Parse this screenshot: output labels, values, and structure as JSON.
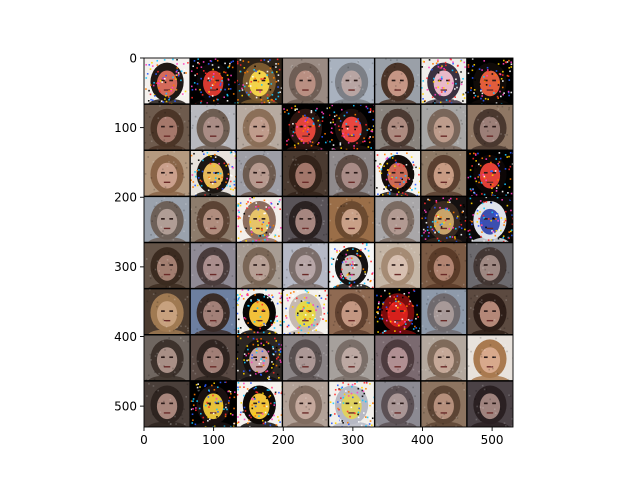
{
  "chart_data": {
    "type": "heatmap",
    "description_kind": "image grid",
    "grid": {
      "rows": 8,
      "cols": 8
    },
    "image_extent": [
      0,
      530,
      0,
      530
    ],
    "xlim": [
      0,
      530
    ],
    "ylim": [
      530,
      0
    ],
    "x_ticks": [
      0,
      100,
      200,
      300,
      400,
      500
    ],
    "y_ticks": [
      0,
      100,
      200,
      300,
      400,
      500
    ],
    "x_tick_labels": [
      "0",
      "100",
      "200",
      "300",
      "400",
      "500"
    ],
    "y_tick_labels": [
      "0",
      "100",
      "200",
      "300",
      "400",
      "500"
    ],
    "separator_color": "#000000",
    "tiles": [
      {
        "row": 0,
        "col": 0,
        "bg": "#f4f1ee",
        "hair": "#1d1714",
        "face": "#d46a5a",
        "noisy": true
      },
      {
        "row": 0,
        "col": 1,
        "bg": "#000000",
        "hair": "#0a0707",
        "face": "#d83a30",
        "noisy": true
      },
      {
        "row": 0,
        "col": 2,
        "bg": "#2b2218",
        "hair": "#7a5a30",
        "face": "#f3d24a",
        "noisy": true
      },
      {
        "row": 0,
        "col": 3,
        "bg": "#9a8b83",
        "hair": "#6f5e55",
        "face": "#b98f82",
        "noisy": false
      },
      {
        "row": 0,
        "col": 4,
        "bg": "#a9b2bf",
        "hair": "#7c7f86",
        "face": "#b8a5a3",
        "noisy": false
      },
      {
        "row": 0,
        "col": 5,
        "bg": "#9aa0a8",
        "hair": "#4a3428",
        "face": "#c69685",
        "noisy": false
      },
      {
        "row": 0,
        "col": 6,
        "bg": "#f0eeea",
        "hair": "#3a3040",
        "face": "#e9b9c9",
        "noisy": true
      },
      {
        "row": 0,
        "col": 7,
        "bg": "#000000",
        "hair": "#100b08",
        "face": "#e25d3c",
        "noisy": true
      },
      {
        "row": 1,
        "col": 0,
        "bg": "#6e5b4d",
        "hair": "#4b3527",
        "face": "#a5786b",
        "noisy": false
      },
      {
        "row": 1,
        "col": 1,
        "bg": "#b8b9bf",
        "hair": "#6d5d52",
        "face": "#a98c85",
        "noisy": false
      },
      {
        "row": 1,
        "col": 2,
        "bg": "#b7aaa0",
        "hair": "#8b6f58",
        "face": "#c09c8c",
        "noisy": false
      },
      {
        "row": 1,
        "col": 3,
        "bg": "#000000",
        "hair": "#2a1510",
        "face": "#e2453a",
        "noisy": true
      },
      {
        "row": 1,
        "col": 4,
        "bg": "#000000",
        "hair": "#1a0f0c",
        "face": "#e9463f",
        "noisy": true
      },
      {
        "row": 1,
        "col": 5,
        "bg": "#8a847e",
        "hair": "#4b3a32",
        "face": "#ad8b80",
        "noisy": false
      },
      {
        "row": 1,
        "col": 6,
        "bg": "#a7a6a5",
        "hair": "#79665a",
        "face": "#bd9c8c",
        "noisy": false
      },
      {
        "row": 1,
        "col": 7,
        "bg": "#8f7764",
        "hair": "#4a382f",
        "face": "#9c7f78",
        "noisy": false
      },
      {
        "row": 2,
        "col": 0,
        "bg": "#b49a80",
        "hair": "#8a6548",
        "face": "#caa08c",
        "noisy": false
      },
      {
        "row": 2,
        "col": 1,
        "bg": "#e8e2dc",
        "hair": "#1b1612",
        "face": "#e7b95a",
        "noisy": true
      },
      {
        "row": 2,
        "col": 2,
        "bg": "#9e9ea6",
        "hair": "#6d5b50",
        "face": "#b79a8f",
        "noisy": false
      },
      {
        "row": 2,
        "col": 3,
        "bg": "#4a3a30",
        "hair": "#33231a",
        "face": "#a2766a",
        "noisy": false
      },
      {
        "row": 2,
        "col": 4,
        "bg": "#8f8a8c",
        "hair": "#5d4c45",
        "face": "#a88b86",
        "noisy": false
      },
      {
        "row": 2,
        "col": 5,
        "bg": "#f5f3f0",
        "hair": "#120c0a",
        "face": "#cc6a56",
        "noisy": true
      },
      {
        "row": 2,
        "col": 6,
        "bg": "#8e7a66",
        "hair": "#5b4030",
        "face": "#c79b83",
        "noisy": false
      },
      {
        "row": 2,
        "col": 7,
        "bg": "#000000",
        "hair": "#0c0606",
        "face": "#e24036",
        "noisy": true
      },
      {
        "row": 3,
        "col": 0,
        "bg": "#9aa2ad",
        "hair": "#6d6058",
        "face": "#b09d95",
        "noisy": false
      },
      {
        "row": 3,
        "col": 1,
        "bg": "#8d7c6c",
        "hair": "#5b4334",
        "face": "#b08d7e",
        "noisy": false
      },
      {
        "row": 3,
        "col": 2,
        "bg": "#f3eeea",
        "hair": "#8c6d5e",
        "face": "#e7c46a",
        "noisy": true
      },
      {
        "row": 3,
        "col": 3,
        "bg": "#595358",
        "hair": "#2b2222",
        "face": "#a68680",
        "noisy": false
      },
      {
        "row": 3,
        "col": 4,
        "bg": "#9a6e48",
        "hair": "#6b4a30",
        "face": "#c9a087",
        "noisy": false
      },
      {
        "row": 3,
        "col": 5,
        "bg": "#a9a7a9",
        "hair": "#7b6b62",
        "face": "#b29a92",
        "noisy": false
      },
      {
        "row": 3,
        "col": 6,
        "bg": "#141010",
        "hair": "#3a2a20",
        "face": "#c9a46a",
        "noisy": true
      },
      {
        "row": 3,
        "col": 7,
        "bg": "#0a0808",
        "hair": "#dfe3ea",
        "face": "#3b4fb0",
        "noisy": true
      },
      {
        "row": 4,
        "col": 0,
        "bg": "#645448",
        "hair": "#3b2b20",
        "face": "#a27e70",
        "noisy": false
      },
      {
        "row": 4,
        "col": 1,
        "bg": "#8f8a95",
        "hair": "#4a3c3c",
        "face": "#a98d8c",
        "noisy": false
      },
      {
        "row": 4,
        "col": 2,
        "bg": "#a79c93",
        "hair": "#7a6656",
        "face": "#b69f94",
        "noisy": false
      },
      {
        "row": 4,
        "col": 3,
        "bg": "#b6b9c6",
        "hair": "#7b6d6a",
        "face": "#b6a5a6",
        "noisy": false
      },
      {
        "row": 4,
        "col": 4,
        "bg": "#f6f6f6",
        "hair": "#151212",
        "face": "#c7c0bd",
        "noisy": true
      },
      {
        "row": 4,
        "col": 5,
        "bg": "#c5b6a6",
        "hair": "#a58b74",
        "face": "#d7bfb0",
        "noisy": false
      },
      {
        "row": 4,
        "col": 6,
        "bg": "#7a5a44",
        "hair": "#5a3b28",
        "face": "#b18471",
        "noisy": false
      },
      {
        "row": 4,
        "col": 7,
        "bg": "#6c6a6e",
        "hair": "#433734",
        "face": "#9e8882",
        "noisy": false
      },
      {
        "row": 5,
        "col": 0,
        "bg": "#4c3c30",
        "hair": "#a07a52",
        "face": "#c7a17e",
        "noisy": false
      },
      {
        "row": 5,
        "col": 1,
        "bg": "#6d7fa0",
        "hair": "#3a2c28",
        "face": "#a28078",
        "noisy": false
      },
      {
        "row": 5,
        "col": 2,
        "bg": "#f2f0ec",
        "hair": "#080606",
        "face": "#f2c13a",
        "noisy": true
      },
      {
        "row": 5,
        "col": 3,
        "bg": "#f4f1ed",
        "hair": "#c6b8b0",
        "face": "#e6d84a",
        "noisy": true
      },
      {
        "row": 5,
        "col": 4,
        "bg": "#8f6a52",
        "hair": "#5f402f",
        "face": "#c39782",
        "noisy": false
      },
      {
        "row": 5,
        "col": 5,
        "bg": "#000000",
        "hair": "#7a0c0c",
        "face": "#d7201c",
        "noisy": true
      },
      {
        "row": 5,
        "col": 6,
        "bg": "#8e9aaa",
        "hair": "#6f6a6e",
        "face": "#a79998",
        "noisy": false
      },
      {
        "row": 5,
        "col": 7,
        "bg": "#5c4a40",
        "hair": "#2e1e18",
        "face": "#b48878",
        "noisy": false
      },
      {
        "row": 6,
        "col": 0,
        "bg": "#6f6660",
        "hair": "#3d322c",
        "face": "#a88f86",
        "noisy": false
      },
      {
        "row": 6,
        "col": 1,
        "bg": "#5a4a44",
        "hair": "#2f2420",
        "face": "#a17f77",
        "noisy": false
      },
      {
        "row": 6,
        "col": 2,
        "bg": "#2c2623",
        "hair": "#141010",
        "face": "#c6a3a6",
        "noisy": true
      },
      {
        "row": 6,
        "col": 3,
        "bg": "#8a8486",
        "hair": "#595050",
        "face": "#ab9795",
        "noisy": false
      },
      {
        "row": 6,
        "col": 4,
        "bg": "#a6a09c",
        "hair": "#7a6e68",
        "face": "#bca8a2",
        "noisy": false
      },
      {
        "row": 6,
        "col": 5,
        "bg": "#7b6a70",
        "hair": "#4d3b3e",
        "face": "#b08f92",
        "noisy": false
      },
      {
        "row": 6,
        "col": 6,
        "bg": "#b3a89e",
        "hair": "#7f6a5a",
        "face": "#c5a898",
        "noisy": false
      },
      {
        "row": 6,
        "col": 7,
        "bg": "#e8e2dc",
        "hair": "#a97a50",
        "face": "#d8a98c",
        "noisy": false
      },
      {
        "row": 7,
        "col": 0,
        "bg": "#4a3f3a",
        "hair": "#2e2420",
        "face": "#a8867c",
        "noisy": false
      },
      {
        "row": 7,
        "col": 1,
        "bg": "#000000",
        "hair": "#1a1010",
        "face": "#e6c23a",
        "noisy": true
      },
      {
        "row": 7,
        "col": 2,
        "bg": "#f5f2ee",
        "hair": "#0e0a08",
        "face": "#f0c43a",
        "noisy": true
      },
      {
        "row": 7,
        "col": 3,
        "bg": "#b2a298",
        "hair": "#806c60",
        "face": "#c4a89c",
        "noisy": false
      },
      {
        "row": 7,
        "col": 4,
        "bg": "#f2f0ec",
        "hair": "#b7b9c4",
        "face": "#e0d260",
        "noisy": true
      },
      {
        "row": 7,
        "col": 5,
        "bg": "#8c8a92",
        "hair": "#5b5054",
        "face": "#a99695",
        "noisy": false
      },
      {
        "row": 7,
        "col": 6,
        "bg": "#8d7460",
        "hair": "#5c4434",
        "face": "#b58f7c",
        "noisy": false
      },
      {
        "row": 7,
        "col": 7,
        "bg": "#4b4246",
        "hair": "#2a2022",
        "face": "#9f837e",
        "noisy": false
      }
    ]
  }
}
